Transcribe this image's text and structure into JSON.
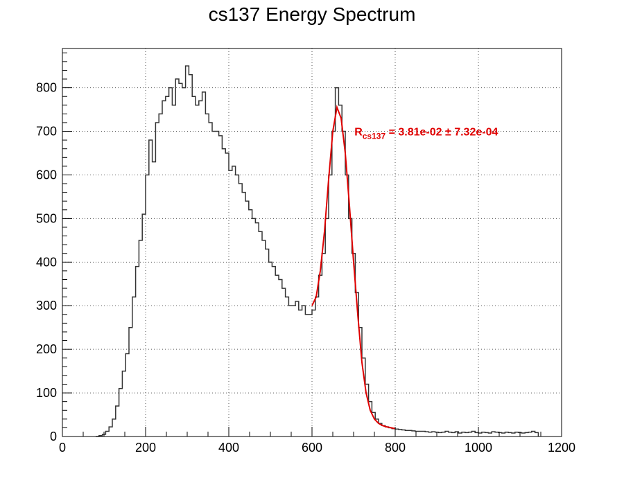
{
  "chart_data": {
    "type": "line",
    "title": "cs137 Energy Spectrum",
    "xlabel": "",
    "ylabel": "",
    "xlim": [
      0,
      1200
    ],
    "ylim": [
      0,
      890
    ],
    "grid": true,
    "x_ticks": [
      0,
      200,
      400,
      600,
      800,
      1000,
      1200
    ],
    "y_ticks": [
      0,
      100,
      200,
      300,
      400,
      500,
      600,
      700,
      800
    ],
    "histogram": {
      "color": "#333333",
      "bin_width": 8,
      "x_start": 80,
      "counts": [
        0,
        2,
        5,
        12,
        22,
        40,
        70,
        110,
        150,
        190,
        250,
        320,
        390,
        450,
        510,
        600,
        680,
        630,
        720,
        740,
        770,
        780,
        800,
        760,
        820,
        810,
        800,
        850,
        830,
        780,
        760,
        770,
        790,
        740,
        720,
        700,
        700,
        690,
        660,
        650,
        610,
        620,
        600,
        580,
        560,
        540,
        520,
        500,
        490,
        470,
        450,
        430,
        400,
        390,
        370,
        360,
        340,
        320,
        300,
        300,
        310,
        290,
        300,
        280,
        280,
        290,
        320,
        370,
        420,
        500,
        600,
        700,
        800,
        760,
        700,
        600,
        500,
        420,
        330,
        250,
        180,
        120,
        80,
        55,
        40,
        30,
        25,
        22,
        20,
        18,
        17,
        16,
        15,
        14,
        14,
        13,
        12,
        12,
        12,
        11,
        10,
        11,
        10,
        9,
        10,
        12,
        10,
        9,
        11,
        8,
        10,
        9,
        10,
        12,
        9,
        8,
        10,
        9,
        8,
        11,
        10,
        9,
        8,
        10,
        9,
        8,
        10,
        9,
        8,
        9,
        10,
        12,
        9
      ]
    },
    "fit": {
      "color": "#e00000",
      "x": [
        600,
        610,
        620,
        630,
        640,
        650,
        660,
        670,
        680,
        690,
        700,
        710,
        720,
        730,
        740,
        750,
        760,
        770,
        780,
        790,
        800
      ],
      "y": [
        300,
        320,
        380,
        470,
        590,
        700,
        755,
        730,
        650,
        530,
        400,
        280,
        170,
        100,
        60,
        40,
        30,
        25,
        22,
        20,
        18
      ],
      "label_main": "R",
      "label_sub": "cs137",
      "label_value": " = 3.81e-02 ± 7.32e-04"
    },
    "colors": {
      "frame": "#000000",
      "grid": "#555555",
      "histogram": "#333333",
      "fit": "#e00000"
    }
  }
}
